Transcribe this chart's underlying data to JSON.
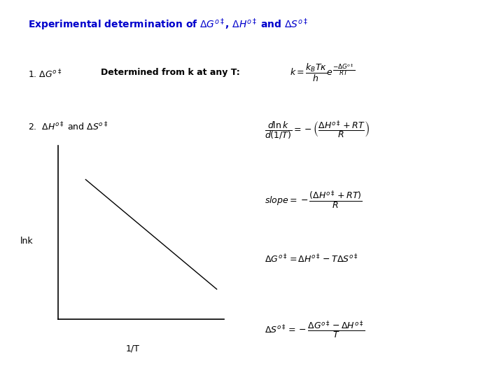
{
  "background_color": "#ffffff",
  "title_text": "Experimental determination of $\\Delta G^{o\\ddagger}$, $\\Delta H^{o\\ddagger}$ and $\\Delta S^{o\\ddagger}$",
  "title_color": "#0000cc",
  "title_fontsize": 10,
  "section1_label": "1. $\\Delta G^{o\\ddagger}$",
  "section1_desc": "Determined from k at any T:",
  "section1_eq": "$k = \\dfrac{k_B T\\kappa}{h} e^{\\dfrac{-\\Delta G^{o\\ddagger}}{RT}}$",
  "section2_label": "2.  $\\Delta H^{o\\ddagger}$ and $\\Delta S^{o\\ddagger}$",
  "eq2": "$\\dfrac{d\\ln k}{d(1/T)} = -\\left(\\dfrac{\\Delta H^{o\\ddagger} + RT}{R}\\right)$",
  "eq3": "$slope = -\\dfrac{(\\Delta H^{o\\ddagger} + RT)}{R}$",
  "eq4": "$\\Delta G^{o\\ddagger} = \\Delta H^{o\\ddagger} - T\\Delta S^{o\\ddagger}$",
  "eq5": "$\\Delta S^{o\\ddagger} = -\\dfrac{\\Delta G^{o\\ddagger} - \\Delta H^{o\\ddagger}}{T}$",
  "lnk_label": "lnk",
  "xaxis_label": "1/T",
  "plot_color": "#000000",
  "text_fontsize": 9,
  "eq_fontsize": 9
}
